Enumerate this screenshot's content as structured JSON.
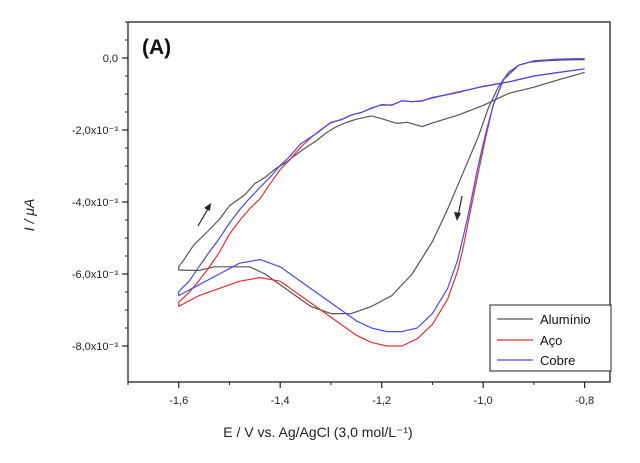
{
  "chart_data": {
    "type": "line",
    "panel_label": "(A)",
    "xlabel": "E / V vs. Ag/AgCl (3,0 mol/L⁻¹)",
    "ylabel": "I / μA",
    "xlim": [
      -1.7,
      -0.75
    ],
    "ylim": [
      -0.009,
      0.001
    ],
    "x_ticks": [
      -1.6,
      -1.4,
      -1.2,
      -1.0,
      -0.8
    ],
    "x_tick_labels": [
      "-1,6",
      "-1,4",
      "-1,2",
      "-1,0",
      "-0,8"
    ],
    "y_ticks": [
      0,
      -0.002,
      -0.004,
      -0.006,
      -0.008
    ],
    "y_tick_labels": [
      "0,0",
      "-2,0x10⁻³",
      "-4,0x10⁻³",
      "-6,0x10⁻³",
      "-8,0x10⁻³"
    ],
    "legend_position": "bottom-right",
    "grid": false,
    "series": [
      {
        "name": "Alumínio",
        "color": "#555555",
        "x": [
          -0.8,
          -0.82,
          -0.85,
          -0.88,
          -0.91,
          -0.93,
          -0.95,
          -0.97,
          -0.99,
          -1.01,
          -1.04,
          -1.07,
          -1.1,
          -1.14,
          -1.18,
          -1.22,
          -1.26,
          -1.3,
          -1.34,
          -1.37,
          -1.4,
          -1.43,
          -1.46,
          -1.5,
          -1.53,
          -1.56,
          -1.58,
          -1.6,
          -1.6,
          -1.59,
          -1.57,
          -1.55,
          -1.52,
          -1.5,
          -1.47,
          -1.45,
          -1.43,
          -1.41,
          -1.39,
          -1.37,
          -1.35,
          -1.33,
          -1.31,
          -1.29,
          -1.27,
          -1.25,
          -1.22,
          -1.2,
          -1.17,
          -1.15,
          -1.12,
          -1.1,
          -1.05,
          -1.0,
          -0.95,
          -0.9,
          -0.85,
          -0.8
        ],
        "y": [
          -5e-05,
          -5e-05,
          -6e-05,
          -8e-05,
          -0.00012,
          -0.0002,
          -0.0004,
          -0.0008,
          -0.0014,
          -0.0022,
          -0.0032,
          -0.0042,
          -0.0051,
          -0.006,
          -0.0066,
          -0.0069,
          -0.0071,
          -0.0071,
          -0.0069,
          -0.0066,
          -0.0063,
          -0.006,
          -0.0058,
          -0.0058,
          -0.0058,
          -0.0059,
          -0.0059,
          -0.0059,
          -0.0058,
          -0.0056,
          -0.0052,
          -0.0049,
          -0.0045,
          -0.0041,
          -0.0038,
          -0.0035,
          -0.0033,
          -0.0031,
          -0.0029,
          -0.0027,
          -0.0025,
          -0.0023,
          -0.0021,
          -0.0019,
          -0.0018,
          -0.0017,
          -0.0016,
          -0.0017,
          -0.0018,
          -0.0018,
          -0.0019,
          -0.0018,
          -0.0016,
          -0.0013,
          -0.001,
          -0.0008,
          -0.0006,
          -0.0004
        ]
      },
      {
        "name": "Aço",
        "color": "#e83030",
        "x": [
          -0.8,
          -0.85,
          -0.9,
          -0.93,
          -0.96,
          -0.98,
          -0.995,
          -1.01,
          -1.02,
          -1.03,
          -1.04,
          -1.05,
          -1.07,
          -1.1,
          -1.13,
          -1.16,
          -1.19,
          -1.22,
          -1.25,
          -1.28,
          -1.32,
          -1.36,
          -1.4,
          -1.44,
          -1.48,
          -1.52,
          -1.56,
          -1.6,
          -1.6,
          -1.58,
          -1.56,
          -1.54,
          -1.52,
          -1.5,
          -1.48,
          -1.46,
          -1.44,
          -1.42,
          -1.4,
          -1.38,
          -1.36,
          -1.34,
          -1.32,
          -1.3,
          -1.28,
          -1.26,
          -1.24,
          -1.22,
          -1.2,
          -1.18,
          -1.16,
          -1.14,
          -1.12,
          -1.1,
          -1.05,
          -1.0,
          -0.95,
          -0.9,
          -0.85,
          -0.8
        ],
        "y": [
          -2e-05,
          -3e-05,
          -8e-05,
          -0.0002,
          -0.0006,
          -0.0013,
          -0.0022,
          -0.0032,
          -0.0039,
          -0.0046,
          -0.0053,
          -0.0059,
          -0.0067,
          -0.0074,
          -0.0078,
          -0.008,
          -0.008,
          -0.0079,
          -0.0077,
          -0.0074,
          -0.007,
          -0.0066,
          -0.0062,
          -0.0061,
          -0.0062,
          -0.0064,
          -0.0066,
          -0.0069,
          -0.0068,
          -0.0065,
          -0.0062,
          -0.0058,
          -0.0054,
          -0.0049,
          -0.0045,
          -0.0042,
          -0.0039,
          -0.0035,
          -0.0031,
          -0.0028,
          -0.0025,
          -0.0022,
          -0.002,
          -0.0018,
          -0.0017,
          -0.0016,
          -0.0015,
          -0.0014,
          -0.0013,
          -0.0013,
          -0.0012,
          -0.0012,
          -0.0012,
          -0.0011,
          -0.00095,
          -0.0008,
          -0.00065,
          -0.0005,
          -0.0004,
          -0.0003
        ]
      },
      {
        "name": "Cobre",
        "color": "#4a4af0",
        "x": [
          -0.8,
          -0.85,
          -0.9,
          -0.93,
          -0.96,
          -0.98,
          -0.995,
          -1.01,
          -1.02,
          -1.03,
          -1.04,
          -1.05,
          -1.07,
          -1.1,
          -1.13,
          -1.16,
          -1.19,
          -1.22,
          -1.25,
          -1.28,
          -1.32,
          -1.36,
          -1.4,
          -1.44,
          -1.48,
          -1.52,
          -1.56,
          -1.6,
          -1.6,
          -1.58,
          -1.56,
          -1.54,
          -1.52,
          -1.5,
          -1.48,
          -1.46,
          -1.44,
          -1.42,
          -1.4,
          -1.38,
          -1.36,
          -1.34,
          -1.32,
          -1.3,
          -1.28,
          -1.26,
          -1.24,
          -1.22,
          -1.2,
          -1.18,
          -1.16,
          -1.14,
          -1.12,
          -1.1,
          -1.05,
          -1.0,
          -0.95,
          -0.9,
          -0.85,
          -0.8
        ],
        "y": [
          -2e-05,
          -3e-05,
          -8e-05,
          -0.0002,
          -0.0006,
          -0.0013,
          -0.0021,
          -0.003,
          -0.0037,
          -0.0044,
          -0.005,
          -0.0056,
          -0.0064,
          -0.0071,
          -0.0075,
          -0.0076,
          -0.0076,
          -0.0075,
          -0.0073,
          -0.007,
          -0.0066,
          -0.0062,
          -0.0058,
          -0.0056,
          -0.0057,
          -0.006,
          -0.0063,
          -0.0066,
          -0.0065,
          -0.0062,
          -0.0058,
          -0.0054,
          -0.005,
          -0.0046,
          -0.0042,
          -0.0039,
          -0.0036,
          -0.0033,
          -0.003,
          -0.0027,
          -0.0024,
          -0.0022,
          -0.002,
          -0.0018,
          -0.0017,
          -0.0016,
          -0.0015,
          -0.0014,
          -0.0013,
          -0.0013,
          -0.0012,
          -0.0012,
          -0.0012,
          -0.0011,
          -0.00095,
          -0.0008,
          -0.00065,
          -0.0005,
          -0.0004,
          -0.0003
        ]
      }
    ]
  }
}
